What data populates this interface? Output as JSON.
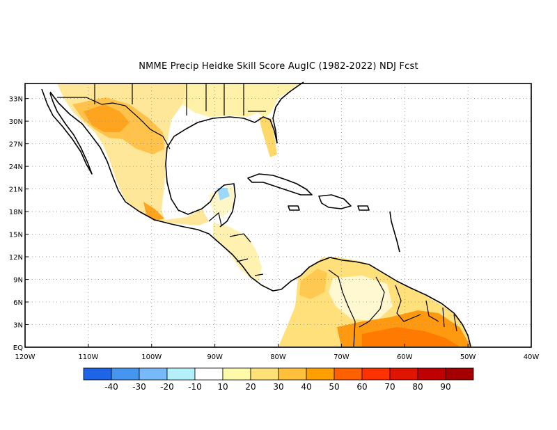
{
  "title": "NMME Precip Heidke Skill Score AugIC (1982-2022) NDJ Fcst",
  "map": {
    "lon_range": [
      -120,
      -40
    ],
    "lat_range": [
      0,
      35
    ],
    "lon_ticks": [
      {
        "value": -120,
        "label": "120W"
      },
      {
        "value": -110,
        "label": "110W"
      },
      {
        "value": -100,
        "label": "100W"
      },
      {
        "value": -90,
        "label": "90W"
      },
      {
        "value": -80,
        "label": "80W"
      },
      {
        "value": -70,
        "label": "70W"
      },
      {
        "value": -60,
        "label": "60W"
      },
      {
        "value": -50,
        "label": "50W"
      },
      {
        "value": -40,
        "label": "40W"
      }
    ],
    "lat_ticks": [
      {
        "value": 0,
        "label": "EQ"
      },
      {
        "value": 3,
        "label": "3N"
      },
      {
        "value": 6,
        "label": "6N"
      },
      {
        "value": 9,
        "label": "9N"
      },
      {
        "value": 12,
        "label": "12N"
      },
      {
        "value": 15,
        "label": "15N"
      },
      {
        "value": 18,
        "label": "18N"
      },
      {
        "value": 21,
        "label": "21N"
      },
      {
        "value": 24,
        "label": "24N"
      },
      {
        "value": 27,
        "label": "27N"
      },
      {
        "value": 30,
        "label": "30N"
      },
      {
        "value": 33,
        "label": "33N"
      }
    ],
    "grid": "dotted"
  },
  "colorbar": {
    "colors": [
      "#1e64e6",
      "#4696f0",
      "#78b9fa",
      "#b4f0fa",
      "#ffffff",
      "#fffaaa",
      "#ffe178",
      "#ffc03c",
      "#ffa000",
      "#ff6000",
      "#ff3200",
      "#e11400",
      "#c00000",
      "#a50000"
    ],
    "labels": [
      "-40",
      "-30",
      "-20",
      "-10",
      "10",
      "20",
      "30",
      "40",
      "50",
      "60",
      "70",
      "80",
      "90"
    ]
  },
  "colors": {
    "coast": "#000000",
    "low_skill": "#fff4b0",
    "mid_skill": "#ffd35a",
    "high_skill": "#ff9a00",
    "very_high": "#ff7a00",
    "negative": "#9bd8fa"
  }
}
